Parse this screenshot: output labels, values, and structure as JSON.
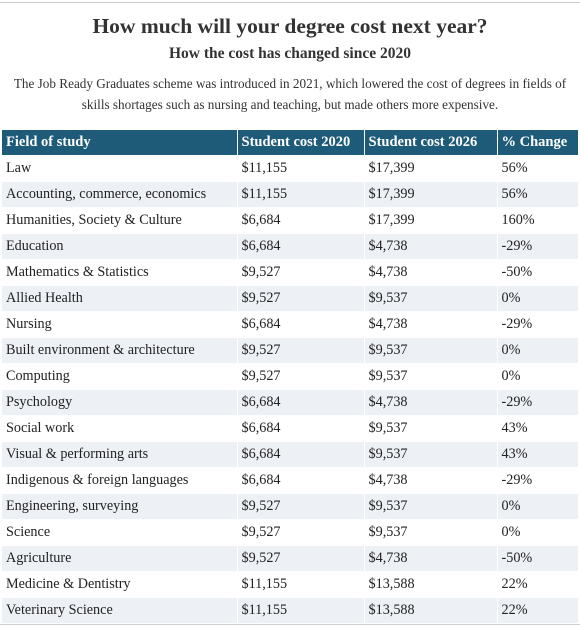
{
  "chart_data": {
    "type": "table",
    "title": "How much will your degree cost next year?",
    "subtitle": "How the cost has changed since 2020",
    "description": "The Job Ready Graduates scheme was introduced in 2021, which lowered the cost of degrees in fields of skills shortages such as nursing and teaching, but made others more expensive.",
    "columns": [
      "Field of study",
      "Student cost 2020",
      "Student cost 2026",
      "% Change"
    ],
    "rows": [
      [
        "Law",
        "$11,155",
        "$17,399",
        "56%"
      ],
      [
        "Accounting, commerce, economics",
        "$11,155",
        "$17,399",
        "56%"
      ],
      [
        "Humanities, Society & Culture",
        "$6,684",
        "$17,399",
        "160%"
      ],
      [
        "Education",
        "$6,684",
        "$4,738",
        "-29%"
      ],
      [
        "Mathematics & Statistics",
        "$9,527",
        "$4,738",
        "-50%"
      ],
      [
        "Allied Health",
        "$9,527",
        "$9,537",
        "0%"
      ],
      [
        "Nursing",
        "$6,684",
        "$4,738",
        "-29%"
      ],
      [
        "Built environment & architecture",
        "$9,527",
        "$9,537",
        "0%"
      ],
      [
        "Computing",
        "$9,527",
        "$9,537",
        "0%"
      ],
      [
        "Psychology",
        "$6,684",
        "$4,738",
        "-29%"
      ],
      [
        "Social work",
        "$6,684",
        "$9,537",
        "43%"
      ],
      [
        "Visual & performing arts",
        "$6,684",
        "$9,537",
        "43%"
      ],
      [
        "Indigenous & foreign languages",
        "$6,684",
        "$4,738",
        "-29%"
      ],
      [
        "Engineering, surveying",
        "$9,527",
        "$9,537",
        "0%"
      ],
      [
        "Science",
        "$9,527",
        "$9,537",
        "0%"
      ],
      [
        "Agriculture",
        "$9,527",
        "$4,738",
        "-50%"
      ],
      [
        "Medicine & Dentistry",
        "$11,155",
        "$13,588",
        "22%"
      ],
      [
        "Veterinary Science",
        "$11,155",
        "$13,588",
        "22%"
      ]
    ]
  },
  "colors": {
    "header_bg": "#1d5b79",
    "header_text": "#ffffff",
    "stripe": "#edf0f4"
  }
}
